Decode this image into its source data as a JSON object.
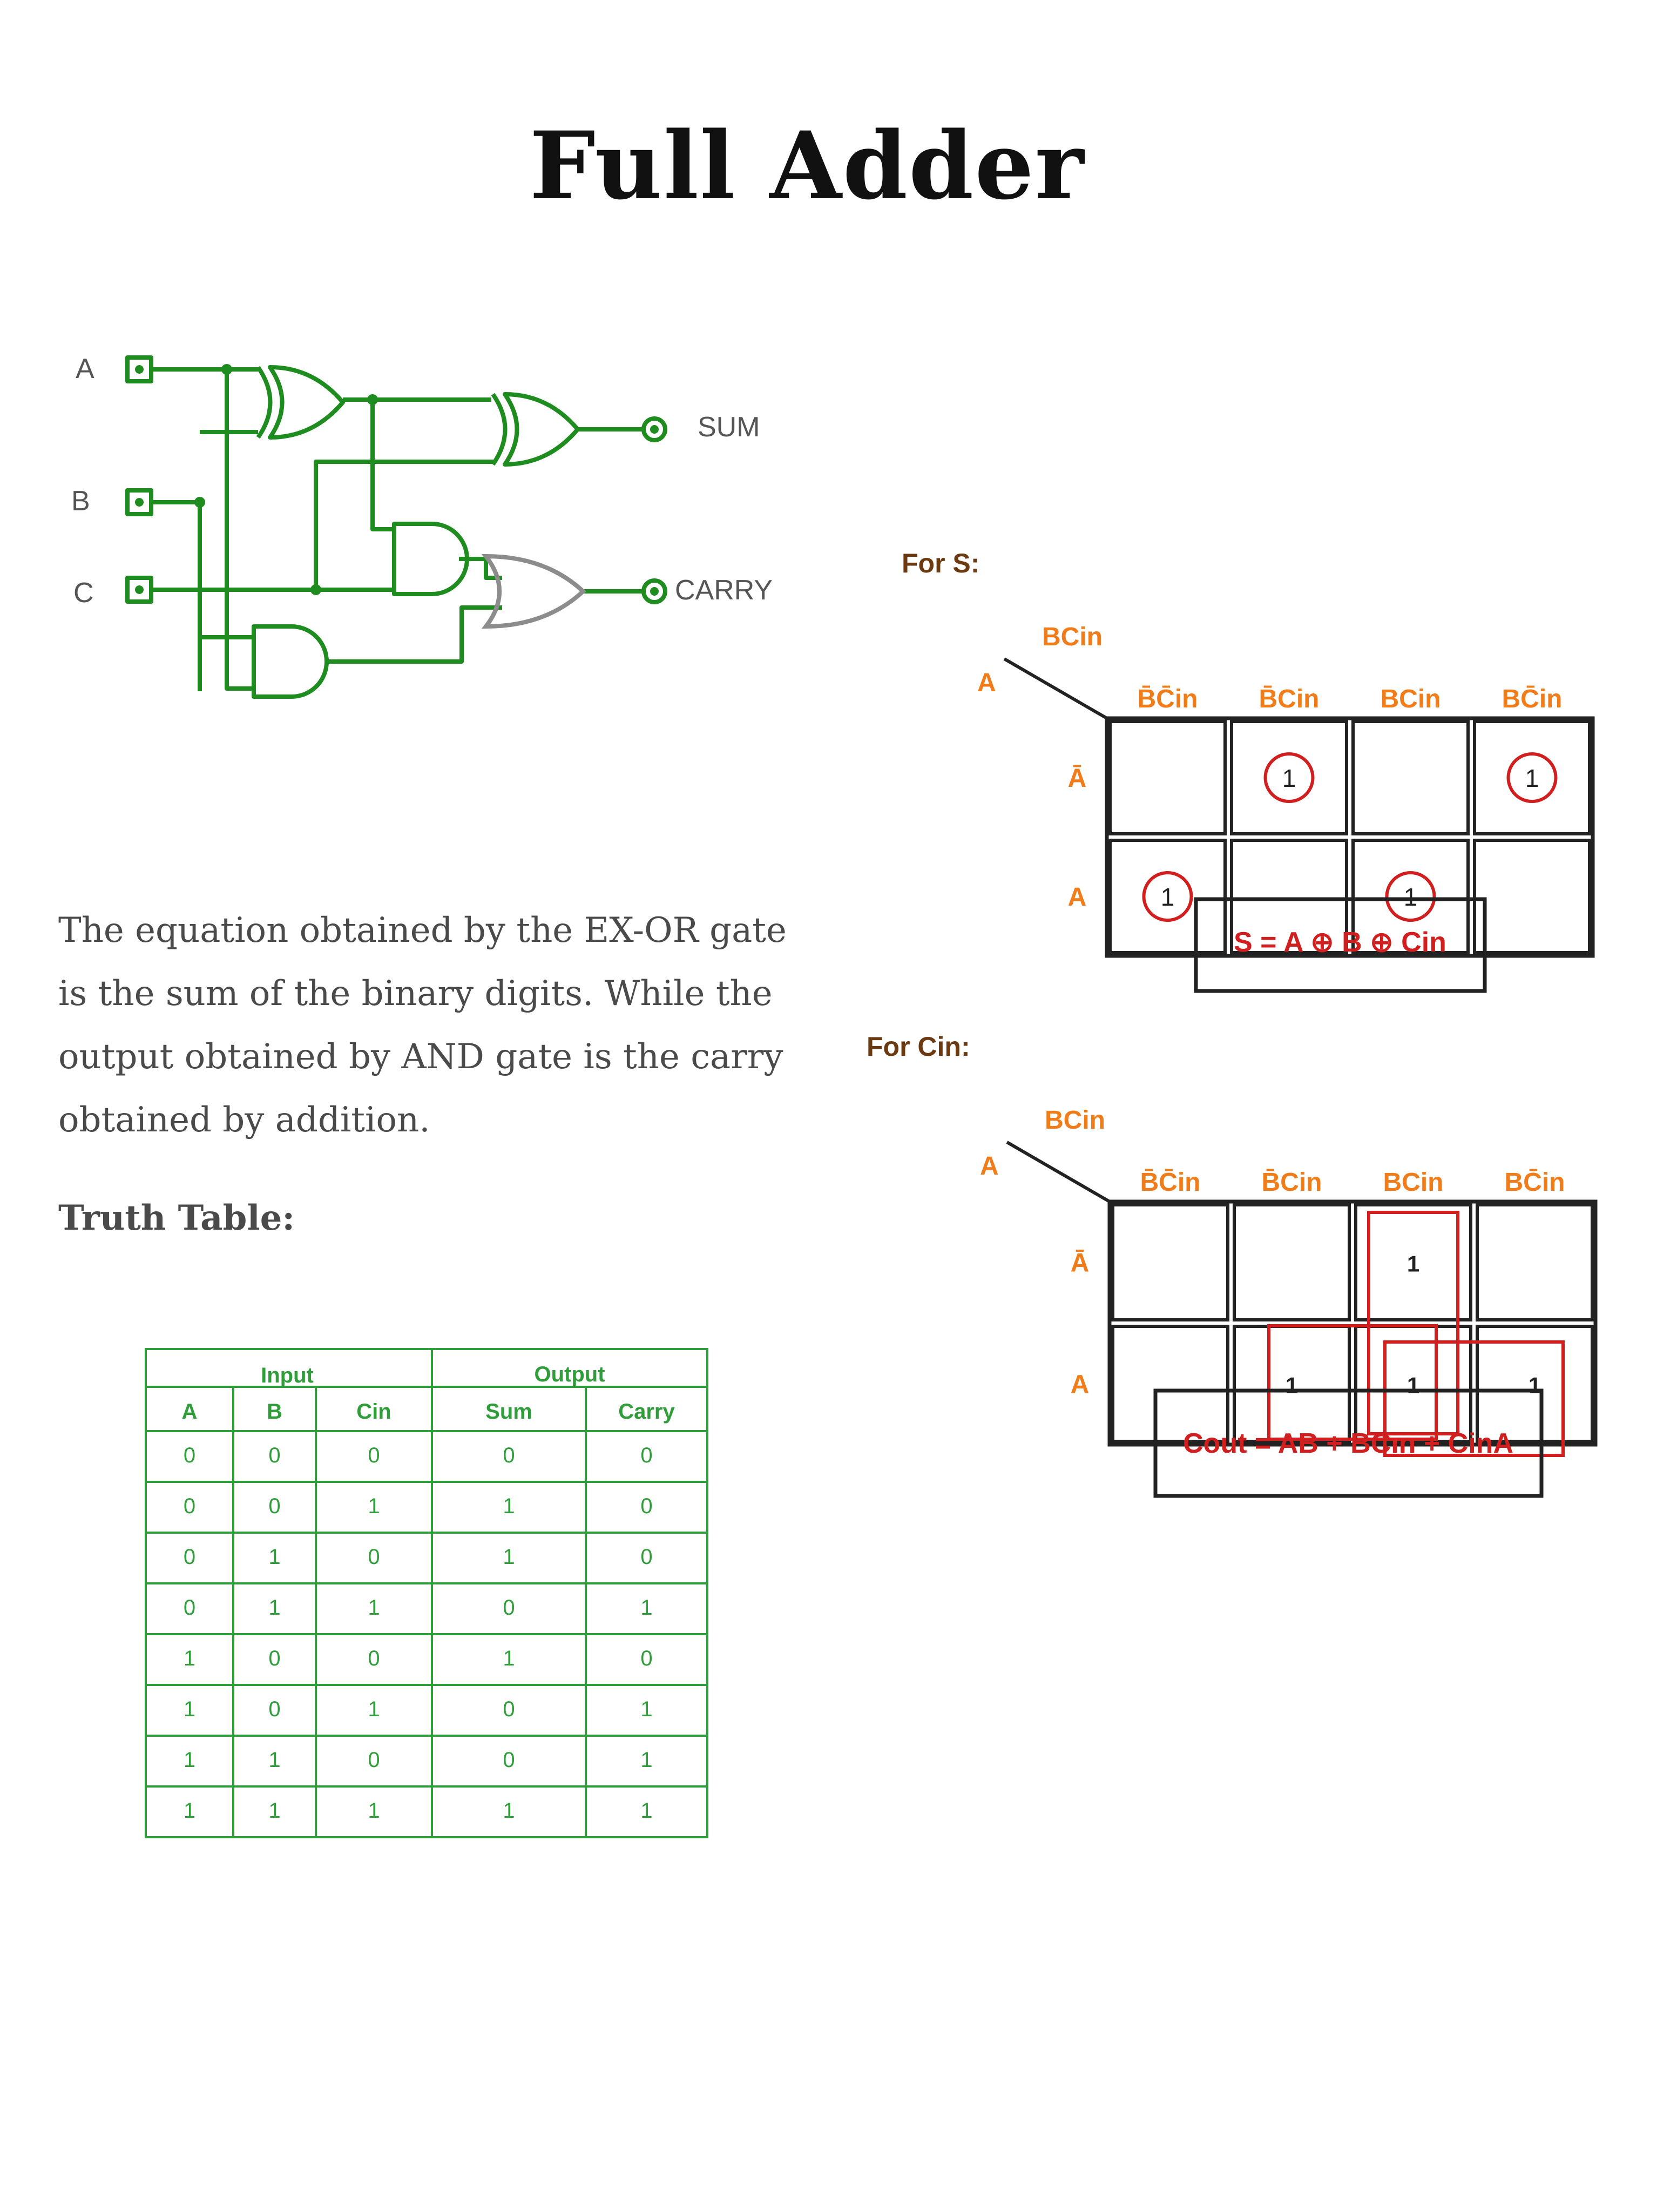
{
  "title": "Full Adder",
  "circuit": {
    "input_labels": [
      "A",
      "B",
      "C"
    ],
    "output_labels": [
      "SUM",
      "CARRY"
    ],
    "colors": {
      "wire": "#1e8c1e",
      "carry_or_gate": "#8c8c8c",
      "label": "#555555"
    }
  },
  "description": "The equation obtained by the EX-OR gate is the sum of the binary digits. While the output obtained by AND gate is the carry obtained by addition.",
  "truth_table": {
    "heading": "Truth Table:",
    "group_headers": [
      "Input",
      "Output"
    ],
    "columns": [
      "A",
      "B",
      "Cin",
      "Sum",
      "Carry"
    ],
    "rows": [
      [
        "0",
        "0",
        "0",
        "0",
        "0"
      ],
      [
        "0",
        "0",
        "1",
        "1",
        "0"
      ],
      [
        "0",
        "1",
        "0",
        "1",
        "0"
      ],
      [
        "0",
        "1",
        "1",
        "0",
        "1"
      ],
      [
        "1",
        "0",
        "0",
        "1",
        "0"
      ],
      [
        "1",
        "0",
        "1",
        "0",
        "1"
      ],
      [
        "1",
        "1",
        "0",
        "0",
        "1"
      ],
      [
        "1",
        "1",
        "1",
        "1",
        "1"
      ]
    ],
    "color": "#2f9e3a"
  },
  "kmap_sum": {
    "heading": "For S:",
    "corner_top": "BCin",
    "corner_left": "A",
    "column_headers": [
      "B̄C̄in",
      "B̄Cin",
      "BCin",
      "BC̄in"
    ],
    "row_headers": [
      "Ā",
      "A"
    ],
    "cells": [
      [
        "",
        "1",
        "",
        "1"
      ],
      [
        "1",
        "",
        "1",
        ""
      ]
    ],
    "equation": "S = A ⊕ B ⊕ Cin"
  },
  "kmap_carry": {
    "heading": "For Cin:",
    "corner_top": "BCin",
    "corner_left": "A",
    "column_headers": [
      "B̄C̄in",
      "B̄Cin",
      "BCin",
      "BC̄in"
    ],
    "row_headers": [
      "Ā",
      "A"
    ],
    "cells": [
      [
        "",
        "",
        "1",
        ""
      ],
      [
        "",
        "1",
        "1",
        "1"
      ]
    ],
    "equation": "Cout = AB + BCin + CinA"
  },
  "colors": {
    "orange": "#f07c1a",
    "brown": "#6b3a10",
    "red": "#d11f1f"
  }
}
